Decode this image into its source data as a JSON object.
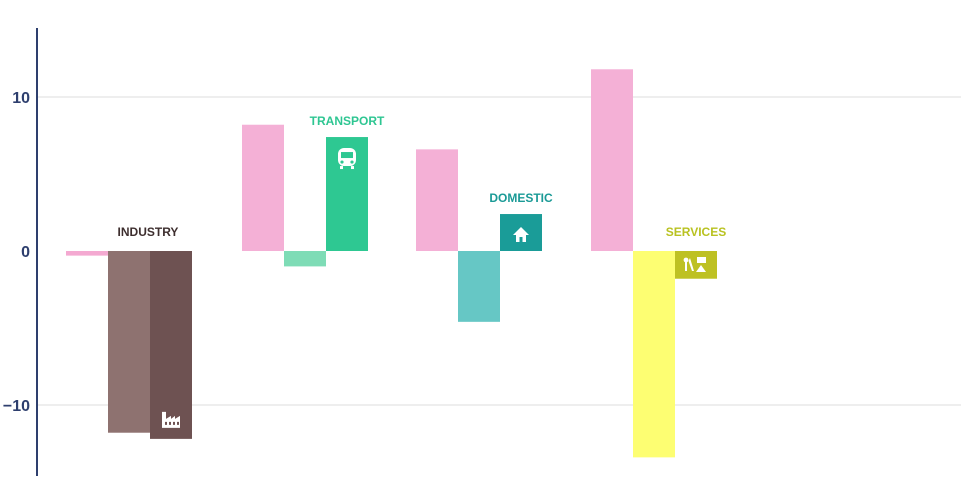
{
  "chart_data": {
    "type": "bar",
    "ylim": [
      -14.5,
      14.5
    ],
    "yticks": [
      10,
      0,
      -10
    ],
    "ytick_labels": [
      "10",
      "0",
      "−10"
    ],
    "grid": true,
    "groups": [
      {
        "name": "INDUSTRY",
        "label_color": "#3d2e2e",
        "icon": "factory-icon",
        "bars": [
          {
            "value": -0.3,
            "color": "#f4a9d1"
          },
          {
            "value": -11.8,
            "color": "#8e7270"
          },
          {
            "value": -12.2,
            "color": "#6e5252"
          }
        ]
      },
      {
        "name": "TRANSPORT",
        "label_color": "#2ec692",
        "icon": "bus-icon",
        "bars": [
          {
            "value": 8.2,
            "color": "#f4b0d6"
          },
          {
            "value": -1.0,
            "color": "#7edcb6"
          },
          {
            "value": 7.4,
            "color": "#2ec892"
          }
        ]
      },
      {
        "name": "DOMESTIC",
        "label_color": "#1a9a96",
        "icon": "house-icon",
        "bars": [
          {
            "value": 6.6,
            "color": "#f4b0d6"
          },
          {
            "value": -4.6,
            "color": "#66c7c5"
          },
          {
            "value": 2.4,
            "color": "#1a9c98"
          }
        ]
      },
      {
        "name": "SERVICES",
        "label_color": "#b9c221",
        "icon": "tools-icon",
        "bars": [
          {
            "value": 11.8,
            "color": "#f4b0d6"
          },
          {
            "value": -13.4,
            "color": "#fdfe72"
          },
          {
            "value": -1.8,
            "color": "#bec123"
          }
        ]
      }
    ]
  }
}
